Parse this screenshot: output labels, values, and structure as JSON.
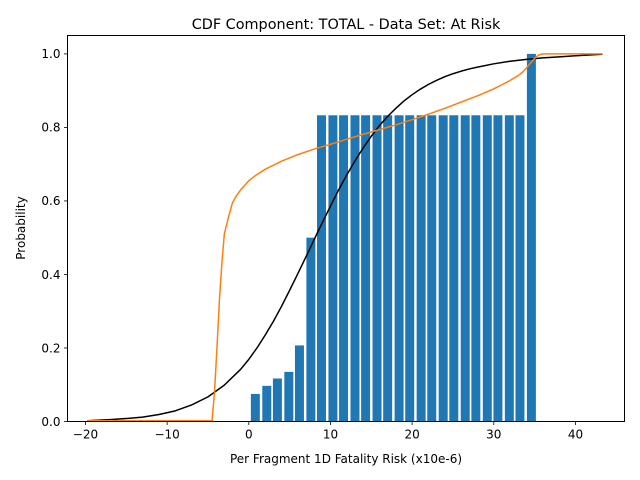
{
  "chart_data": {
    "type": "bar",
    "title": "CDF Component: TOTAL - Data Set: At Risk",
    "xlabel": "Per Fragment 1D Fatality Risk (x10e-6)",
    "ylabel": "Probability",
    "xlim": [
      -22.2,
      46.0
    ],
    "ylim": [
      0,
      1.05
    ],
    "grid": false,
    "x_ticks": [
      -20,
      -10,
      0,
      10,
      20,
      30,
      40
    ],
    "x_tick_labels": [
      "−20",
      "−10",
      "0",
      "10",
      "20",
      "30",
      "40"
    ],
    "y_ticks": [
      0.0,
      0.2,
      0.4,
      0.6,
      0.8,
      1.0
    ],
    "y_tick_labels": [
      "0.0",
      "0.2",
      "0.4",
      "0.6",
      "0.8",
      "1.0"
    ],
    "bar_series": {
      "color": "#1f77b4",
      "bar_width": 1.1,
      "x": [
        0.8,
        2.2,
        3.5,
        4.9,
        6.2,
        7.6,
        8.9,
        10.3,
        11.6,
        13.0,
        14.3,
        15.7,
        17.0,
        18.4,
        19.7,
        21.1,
        22.4,
        23.8,
        25.1,
        26.5,
        27.8,
        29.2,
        30.5,
        31.9,
        33.2,
        34.6
      ],
      "values": [
        0.075,
        0.097,
        0.117,
        0.135,
        0.207,
        0.5,
        0.833,
        0.833,
        0.833,
        0.833,
        0.833,
        0.833,
        0.833,
        0.833,
        0.833,
        0.833,
        0.833,
        0.833,
        0.833,
        0.833,
        0.833,
        0.833,
        0.833,
        0.833,
        0.833,
        1.0
      ]
    },
    "line_series": [
      {
        "color": "#000000",
        "x": [
          -19.8,
          -17,
          -15,
          -13,
          -11,
          -9,
          -7,
          -5,
          -3,
          -1,
          0,
          1,
          2,
          3,
          4,
          5,
          6,
          7,
          8,
          9,
          10,
          11,
          12,
          13,
          14,
          15,
          16,
          17,
          18,
          19,
          20,
          21,
          22,
          23,
          24,
          25,
          26,
          27,
          28,
          30,
          32,
          34,
          36,
          38,
          40,
          43.3
        ],
        "y": [
          0.002,
          0.005,
          0.008,
          0.012,
          0.019,
          0.029,
          0.045,
          0.067,
          0.099,
          0.142,
          0.169,
          0.2,
          0.235,
          0.272,
          0.313,
          0.357,
          0.402,
          0.448,
          0.495,
          0.541,
          0.586,
          0.63,
          0.671,
          0.709,
          0.744,
          0.776,
          0.805,
          0.83,
          0.852,
          0.872,
          0.889,
          0.904,
          0.917,
          0.928,
          0.938,
          0.946,
          0.953,
          0.959,
          0.964,
          0.973,
          0.98,
          0.985,
          0.989,
          0.992,
          0.995,
          0.999
        ]
      },
      {
        "color": "#ff7f0e",
        "x": [
          -19.8,
          -10,
          -5,
          -4.5,
          -4.2,
          -3.9,
          -3.6,
          -3.3,
          -3,
          -2.5,
          -2,
          -1.5,
          -1,
          0,
          1,
          2,
          4,
          6,
          8,
          10,
          12,
          14,
          16,
          18,
          20,
          22,
          24,
          26,
          28,
          30,
          31,
          32,
          33,
          33.5,
          34,
          34.5,
          35,
          35.5,
          36,
          38,
          40,
          43.3
        ],
        "y": [
          0.002,
          0.002,
          0.002,
          0.002,
          0.08,
          0.2,
          0.33,
          0.43,
          0.51,
          0.555,
          0.595,
          0.615,
          0.63,
          0.655,
          0.672,
          0.686,
          0.708,
          0.726,
          0.741,
          0.754,
          0.768,
          0.781,
          0.794,
          0.807,
          0.821,
          0.836,
          0.852,
          0.869,
          0.886,
          0.905,
          0.916,
          0.928,
          0.941,
          0.95,
          0.962,
          0.975,
          0.988,
          0.997,
          1.0,
          1.0,
          1.0,
          1.0
        ]
      }
    ]
  }
}
